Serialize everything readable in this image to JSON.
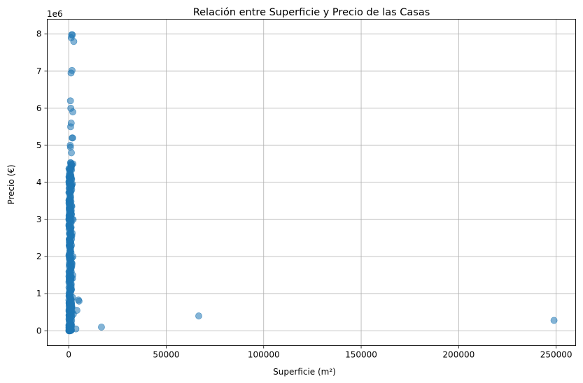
{
  "chart_data": {
    "type": "scatter",
    "title": "Relación entre Superficie y Precio de las Casas",
    "xlabel": "Superficie (m²)",
    "ylabel": "Precio (€)",
    "y_offset_label": "1e6",
    "xlim": [
      -11000,
      260000
    ],
    "ylim": [
      -0.4,
      8.4
    ],
    "x_ticks": [
      0,
      50000,
      100000,
      150000,
      200000,
      250000
    ],
    "y_ticks": [
      0,
      1,
      2,
      3,
      4,
      5,
      6,
      7,
      8
    ],
    "grid": true,
    "point_color": "#1f77b4",
    "point_alpha": 0.55,
    "outliers": [
      {
        "x": 248900,
        "y": 0.28
      },
      {
        "x": 66700,
        "y": 0.4
      },
      {
        "x": 16800,
        "y": 0.1
      },
      {
        "x": 5300,
        "y": 0.8
      },
      {
        "x": 5000,
        "y": 0.83
      },
      {
        "x": 4200,
        "y": 0.55
      },
      {
        "x": 3700,
        "y": 0.05
      },
      {
        "x": 2600,
        "y": 7.8
      },
      {
        "x": 2100,
        "y": 5.9
      },
      {
        "x": 1900,
        "y": 7.98
      },
      {
        "x": 1500,
        "y": 7.98
      },
      {
        "x": 1300,
        "y": 7.9
      },
      {
        "x": 1700,
        "y": 7.02
      },
      {
        "x": 1200,
        "y": 6.95
      },
      {
        "x": 900,
        "y": 6.2
      },
      {
        "x": 1100,
        "y": 6.0
      },
      {
        "x": 2200,
        "y": 4.5
      },
      {
        "x": 2300,
        "y": 3.0
      },
      {
        "x": 1800,
        "y": 5.2
      },
      {
        "x": 2000,
        "y": 5.2
      },
      {
        "x": 1400,
        "y": 4.8
      },
      {
        "x": 2100,
        "y": 1.5
      },
      {
        "x": 2400,
        "y": 0.45
      },
      {
        "x": 2000,
        "y": 0.9
      },
      {
        "x": 2200,
        "y": 2.0
      },
      {
        "x": 1300,
        "y": 5.6
      },
      {
        "x": 1000,
        "y": 5.5
      },
      {
        "x": 800,
        "y": 5.0
      },
      {
        "x": 900,
        "y": 4.95
      },
      {
        "x": 1500,
        "y": 3.9
      }
    ],
    "dense_cluster": {
      "x_range": [
        100,
        2000
      ],
      "y_range": [
        0.0,
        4.55
      ],
      "count": 420
    }
  }
}
